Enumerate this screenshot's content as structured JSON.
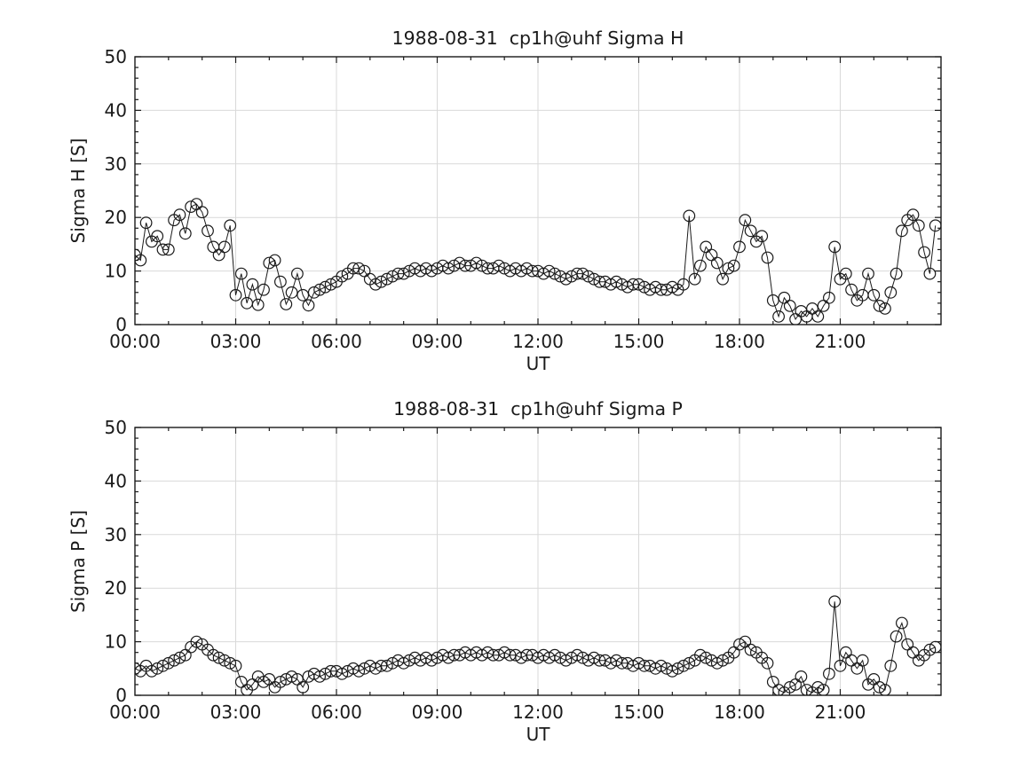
{
  "figure": {
    "background": "#ffffff",
    "frame_color": "#1a1a1a",
    "grid_color": "#d9d9d9",
    "data_color": "#1a1a1a"
  },
  "chart_data": [
    {
      "type": "line",
      "title": "1988-08-31  cp1h@uhf Sigma H",
      "ylabel": "Sigma H [S]",
      "xlabel": "UT",
      "marker": "open-circle",
      "legend": "none",
      "grid": "major-both-axes",
      "xlim_hours": [
        0,
        24
      ],
      "ylim": [
        0,
        50
      ],
      "x_step_minutes": 10,
      "x_start_hours": 0,
      "xticks": {
        "major_hours": [
          0,
          3,
          6,
          9,
          12,
          15,
          18,
          21
        ],
        "labels": [
          "00:00",
          "03:00",
          "06:00",
          "09:00",
          "12:00",
          "15:00",
          "18:00",
          "21:00"
        ],
        "minor_every_hours": 1
      },
      "yticks": {
        "major": [
          0,
          10,
          20,
          30,
          40,
          50
        ],
        "labels": [
          "0",
          "10",
          "20",
          "30",
          "40",
          "50"
        ],
        "minor_every": 2
      },
      "values": [
        13,
        12,
        19,
        15.5,
        16.5,
        14,
        14,
        19.5,
        20.5,
        17,
        22,
        22.5,
        21,
        17.5,
        14.5,
        13,
        14.5,
        18.5,
        5.5,
        9.5,
        4,
        7.5,
        3.7,
        6.5,
        11.5,
        12,
        8,
        3.8,
        6,
        9.5,
        5.5,
        3.6,
        6,
        6.5,
        7,
        7.5,
        8,
        9,
        9.5,
        10.5,
        10.5,
        10,
        8.5,
        7.5,
        8,
        8.5,
        9,
        9.5,
        9.5,
        10,
        10.5,
        10,
        10.5,
        10,
        10.5,
        11,
        10.5,
        11,
        11.5,
        11,
        11,
        11.5,
        11,
        10.5,
        10.5,
        11,
        10.5,
        10,
        10.5,
        10,
        10.5,
        10,
        10,
        9.5,
        10,
        9.5,
        9,
        8.5,
        9,
        9.5,
        9.5,
        9,
        8.5,
        8,
        8,
        7.5,
        8,
        7.5,
        7,
        7.5,
        7.5,
        7,
        6.5,
        7,
        6.5,
        6.5,
        7,
        6.5,
        7.5,
        20.3,
        8.5,
        11,
        14.5,
        13,
        11.5,
        8.5,
        10.5,
        11,
        14.5,
        19.5,
        17.5,
        15.5,
        16.5,
        12.5,
        4.5,
        1.5,
        5,
        3.5,
        1,
        2.5,
        1.5,
        3,
        1.5,
        3.5,
        5,
        14.5,
        8.5,
        9.5,
        6.5,
        4.5,
        5.5,
        9.5,
        5.5,
        3.5,
        3,
        6,
        9.5,
        17.5,
        19.5,
        20.5,
        18.5,
        13.5,
        9.5,
        18.5
      ]
    },
    {
      "type": "line",
      "title": "1988-08-31  cp1h@uhf Sigma P",
      "ylabel": "Sigma P [S]",
      "xlabel": "UT",
      "marker": "open-circle",
      "legend": "none",
      "grid": "major-both-axes",
      "xlim_hours": [
        0,
        24
      ],
      "ylim": [
        0,
        50
      ],
      "x_step_minutes": 10,
      "x_start_hours": 0,
      "xticks": {
        "major_hours": [
          0,
          3,
          6,
          9,
          12,
          15,
          18,
          21
        ],
        "labels": [
          "00:00",
          "03:00",
          "06:00",
          "09:00",
          "12:00",
          "15:00",
          "18:00",
          "21:00"
        ],
        "minor_every_hours": 1
      },
      "yticks": {
        "major": [
          0,
          10,
          20,
          30,
          40,
          50
        ],
        "labels": [
          "0",
          "10",
          "20",
          "30",
          "40",
          "50"
        ],
        "minor_every": 2
      },
      "values": [
        5,
        4.5,
        5.5,
        4.5,
        5,
        5.5,
        6,
        6.5,
        7,
        7.5,
        9,
        10,
        9.5,
        8.5,
        7.5,
        7,
        6.5,
        6,
        5.5,
        2.5,
        1,
        2,
        3.5,
        2.5,
        3,
        1.5,
        2.5,
        3,
        3.5,
        3,
        1.5,
        3.5,
        4,
        3.5,
        4,
        4.5,
        4.5,
        4,
        4.5,
        5,
        4.5,
        5,
        5.5,
        5,
        5.5,
        5.5,
        6,
        6.5,
        6,
        6.5,
        7,
        6.5,
        7,
        6.5,
        7,
        7.5,
        7,
        7.5,
        7.5,
        8,
        7.5,
        8,
        7.5,
        8,
        7.5,
        7.5,
        8,
        7.5,
        7.5,
        7,
        7.5,
        7.5,
        7,
        7.5,
        7,
        7.5,
        7,
        6.5,
        7,
        7.5,
        7,
        6.5,
        7,
        6.5,
        6.5,
        6,
        6.5,
        6,
        6,
        5.5,
        6,
        5.5,
        5.5,
        5,
        5.5,
        5,
        4.5,
        5,
        5.5,
        6,
        6.5,
        7.5,
        7,
        6.5,
        6,
        6.5,
        7,
        8,
        9.5,
        10,
        8.5,
        8,
        7,
        6,
        2.5,
        1,
        0.5,
        1.5,
        2,
        3.5,
        1,
        0.5,
        1.5,
        1,
        4,
        17.5,
        5.5,
        8,
        6.5,
        5,
        6.5,
        2,
        3,
        1.5,
        1,
        5.5,
        11,
        13.5,
        9.5,
        8,
        6.5,
        7.5,
        8.5,
        9
      ]
    }
  ]
}
